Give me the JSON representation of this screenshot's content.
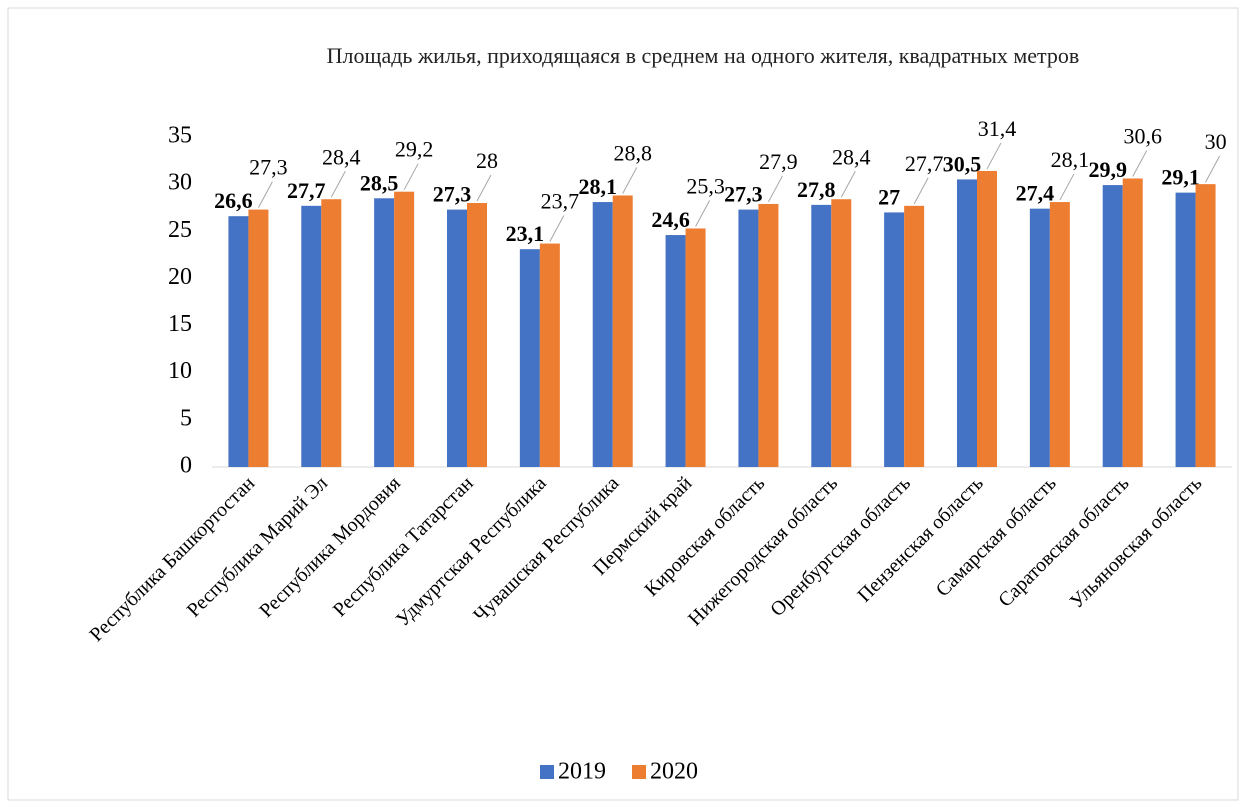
{
  "chart_data": {
    "type": "bar",
    "title": "Площадь жилья, приходящаяся в среднем на одного жителя, квадратных метров",
    "categories": [
      "Республика Башкортостан",
      "Республика Марий Эл",
      "Республика Мордовия",
      "Республика Татарстан",
      "Удмуртская Республика",
      "Чувашская Республика",
      "Пермский край",
      "Кировская область",
      "Нижегородская область",
      "Оренбургская область",
      "Пензенская область",
      "Самарская область",
      "Саратовская область",
      "Ульяновская область"
    ],
    "series": [
      {
        "name": "2019",
        "color": "#4472c4",
        "values": [
          26.6,
          27.7,
          28.5,
          27.3,
          23.1,
          28.1,
          24.6,
          27.3,
          27.8,
          27,
          30.5,
          27.4,
          29.9,
          29.1
        ],
        "value_labels": [
          "26,6",
          "27,7",
          "28,5",
          "27,3",
          "23,1",
          "28,1",
          "24,6",
          "27,3",
          "27,8",
          "27",
          "30,5",
          "27,4",
          "29,9",
          "29,1"
        ]
      },
      {
        "name": "2020",
        "color": "#ed7d31",
        "values": [
          27.3,
          28.4,
          29.2,
          28,
          23.7,
          28.8,
          25.3,
          27.9,
          28.4,
          27.7,
          31.4,
          28.1,
          30.6,
          30
        ],
        "value_labels": [
          "27,3",
          "28,4",
          "29,2",
          "28",
          "23,7",
          "28,8",
          "25,3",
          "27,9",
          "28,4",
          "27,7",
          "31,4",
          "28,1",
          "30,6",
          "30"
        ]
      }
    ],
    "ylim": [
      0,
      35
    ],
    "yticks": [
      0,
      5,
      10,
      15,
      20,
      25,
      30,
      35
    ],
    "grid": false,
    "legend": "bottom"
  }
}
